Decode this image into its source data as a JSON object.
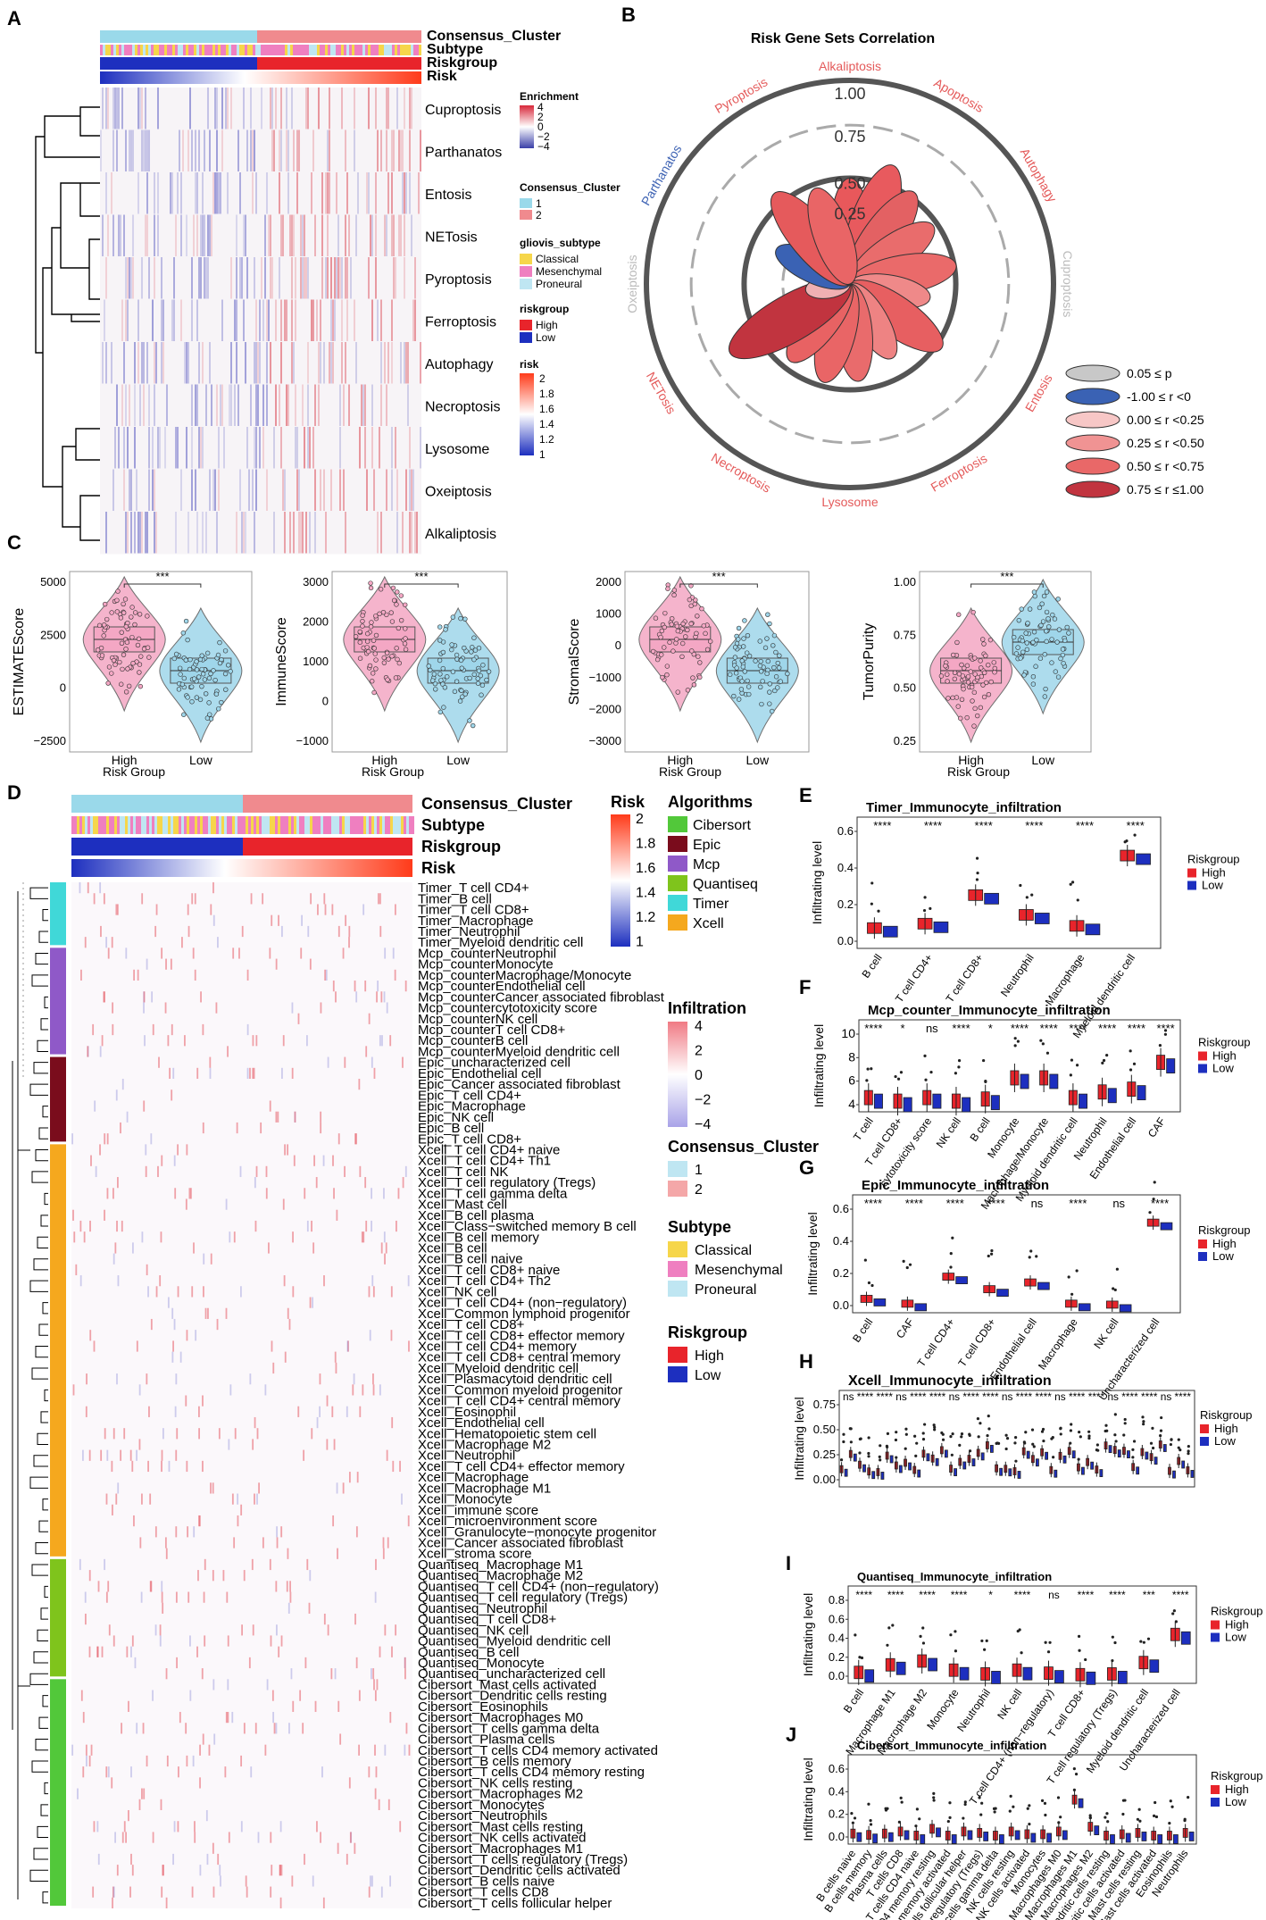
{
  "panels": {
    "A": "A",
    "B": "B",
    "C": "C",
    "D": "D",
    "E": "E",
    "F": "F",
    "G": "G",
    "H": "H",
    "I": "I",
    "J": "J"
  },
  "heatA": {
    "ann": [
      "Consensus_Cluster",
      "Subtype",
      "Riskgroup",
      "Risk"
    ],
    "rows": [
      "Cuproptosis",
      "Parthanatos",
      "Entosis",
      "NETosis",
      "Pyroptosis",
      "Ferroptosis",
      "Autophagy",
      "Necroptosis",
      "Lysosome",
      "Oxeiptosis",
      "Alkaliptosis"
    ],
    "legend": {
      "enrichment_title": "Enrichment",
      "enrichment_ticks": [
        "4",
        "2",
        "0",
        "−2",
        "−4"
      ],
      "cc_title": "Consensus_Cluster",
      "cc_items": [
        "1",
        "2"
      ],
      "sub_title": "gliovis_subtype",
      "sub_items": [
        "Classical",
        "Mesenchymal",
        "Proneural"
      ],
      "rg_title": "riskgroup",
      "rg_items": [
        "High",
        "Low"
      ],
      "risk_title": "risk",
      "risk_ticks": [
        "2",
        "1.8",
        "1.6",
        "1.4",
        "1.2",
        "1"
      ]
    }
  },
  "radar": {
    "title": "Risk Gene Sets Correlation",
    "labels": [
      "Alkaliptosis",
      "Apoptosis",
      "Autophagy",
      "Cuproptosis",
      "Entosis",
      "Ferroptosis",
      "Lysosome",
      "Necroptosis",
      "NETosis",
      "Oxeiptosis",
      "Parthanatos",
      "Pyroptosis"
    ],
    "ring_labels": [
      "1.00",
      "0.75",
      "0.50",
      "0.25"
    ],
    "legend": [
      "0.05 ≤ p",
      "-1.00 ≤ r <0",
      "0.00 ≤ r <0.25",
      "0.25 ≤ r <0.50",
      "0.50 ≤ r <0.75",
      "0.75 ≤ r ≤1.00"
    ]
  },
  "violins": [
    {
      "ylabel": "ESTIMATEScore",
      "ticks": [
        "5000",
        "2500",
        "0",
        "−2500"
      ],
      "sig": "***"
    },
    {
      "ylabel": "ImmuneScore",
      "ticks": [
        "3000",
        "2000",
        "1000",
        "0",
        "−1000"
      ],
      "sig": "***"
    },
    {
      "ylabel": "StromalScore",
      "ticks": [
        "2000",
        "1000",
        "0",
        "−1000",
        "−2000",
        "−3000"
      ],
      "sig": "***"
    },
    {
      "ylabel": "TumorPurity",
      "ticks": [
        "1.00",
        "0.75",
        "0.50",
        "0.25"
      ],
      "sig": "***"
    }
  ],
  "riskGroup": {
    "xlabel": "Risk Group",
    "high": "High",
    "low": "Low"
  },
  "heatD": {
    "ann": [
      "Consensus_Cluster",
      "Subtype",
      "Riskgroup",
      "Risk"
    ],
    "rows": [
      "Timer_T cell CD4+",
      "Timer_B cell",
      "Timer_T cell CD8+",
      "Timer_Macrophage",
      "Timer_Neutrophil",
      "Timer_Myeloid dendritic cell",
      "Mcp_counterNeutrophil",
      "Mcp_counterMonocyte",
      "Mcp_counterMacrophage/Monocyte",
      "Mcp_counterEndothelial cell",
      "Mcp_counterCancer associated fibroblast",
      "Mcp_countercytotoxicity score",
      "Mcp_counterNK cell",
      "Mcp_counterT cell CD8+",
      "Mcp_counterB cell",
      "Mcp_counterMyeloid dendritic cell",
      "Epic_uncharacterized cell",
      "Epic_Endothelial cell",
      "Epic_Cancer associated fibroblast",
      "Epic_T cell CD4+",
      "Epic_Macrophage",
      "Epic_NK cell",
      "Epic_B cell",
      "Epic_T cell CD8+",
      "Xcell_T cell CD4+ naive",
      "Xcell_T cell CD4+ Th1",
      "Xcell_T cell NK",
      "Xcell_T cell regulatory (Tregs)",
      "Xcell_T cell gamma delta",
      "Xcell_Mast cell",
      "Xcell_B cell plasma",
      "Xcell_Class−switched memory B cell",
      "Xcell_B cell memory",
      "Xcell_B cell",
      "Xcell_B cell naive",
      "Xcell_T cell CD8+ naive",
      "Xcell_T cell CD4+ Th2",
      "Xcell_NK cell",
      "Xcell_T cell CD4+ (non−regulatory)",
      "Xcell_Common lymphoid progenitor",
      "Xcell_T cell CD8+",
      "Xcell_T cell CD8+ effector memory",
      "Xcell_T cell CD4+ memory",
      "Xcell_T cell CD8+ central memory",
      "Xcell_Myeloid dendritic cell",
      "Xcell_Plasmacytoid dendritic cell",
      "Xcell_Common myeloid progenitor",
      "Xcell_T cell CD4+ central memory",
      "Xcell_Eosinophil",
      "Xcell_Endothelial cell",
      "Xcell_Hematopoietic stem cell",
      "Xcell_Macrophage M2",
      "Xcell_Neutrophil",
      "Xcell_T cell CD4+ effector memory",
      "Xcell_Macrophage",
      "Xcell_Macrophage M1",
      "Xcell_Monocyte",
      "Xcell_immune score",
      "Xcell_microenvironment score",
      "Xcell_Granulocyte−monocyte progenitor",
      "Xcell_Cancer associated fibroblast",
      "Xcell_stroma score",
      "Quantiseq_Macrophage M1",
      "Quantiseq_Macrophage M2",
      "Quantiseq_T cell CD4+ (non−regulatory)",
      "Quantiseq_T cell regulatory (Tregs)",
      "Quantiseq_Neutrophil",
      "Quantiseq_T cell CD8+",
      "Quantiseq_NK cell",
      "Quantiseq_Myeloid dendritic cell",
      "Quantiseq_B cell",
      "Quantiseq_Monocyte",
      "Quantiseq_uncharacterized cell",
      "Cibersort_Mast cells activated",
      "Cibersort_Dendritic cells resting",
      "Cibersort_Eosinophils",
      "Cibersort_Macrophages M0",
      "Cibersort_T cells gamma delta",
      "Cibersort_Plasma cells",
      "Cibersort_T cells CD4 memory activated",
      "Cibersort_B cells memory",
      "Cibersort_T cells CD4 memory resting",
      "Cibersort_NK cells resting",
      "Cibersort_Macrophages M2",
      "Cibersort_Monocytes",
      "Cibersort_Neutrophils",
      "Cibersort_Mast cells resting",
      "Cibersort_NK cells activated",
      "Cibersort_Macrophages M1",
      "Cibersort_T cells regulatory (Tregs)",
      "Cibersort_Dendritic cells activated",
      "Cibersort_B cells naive",
      "Cibersort_T cells CD8",
      "Cibersort_T cells follicular helper"
    ],
    "legend": {
      "risk_title": "Risk",
      "risk_ticks": [
        "2",
        "1.8",
        "1.6",
        "1.4",
        "1.2",
        "1"
      ],
      "alg_title": "Algorithms",
      "alg_items": [
        "Cibersort",
        "Epic",
        "Mcp",
        "Quantiseq",
        "Timer",
        "Xcell"
      ],
      "inf_title": "Infiltration",
      "inf_ticks": [
        "4",
        "2",
        "0",
        "−2",
        "−4"
      ],
      "cc_title": "Consensus_Cluster",
      "cc_items": [
        "1",
        "2"
      ],
      "sub_title": "Subtype",
      "sub_items": [
        "Classical",
        "Mesenchymal",
        "Proneural"
      ],
      "rg_title": "Riskgroup",
      "rg_items": [
        "High",
        "Low"
      ]
    }
  },
  "boxplots": {
    "ylabel": "Infiltrating level",
    "legend_title": "Riskgroup",
    "high": "High",
    "low": "Low",
    "E": {
      "title": "Timer_Immunocyte_infiltration",
      "ticks": [
        "0.0",
        "0.2",
        "0.4",
        "0.6"
      ],
      "cats": [
        "B cell",
        "T cell CD4+",
        "T cell CD8+",
        "Neutrophil",
        "Macrophage",
        "Myeloid dendritic cell"
      ],
      "sig": [
        "****",
        "****",
        "****",
        "****",
        "****",
        "****"
      ]
    },
    "F": {
      "title": "Mcp_counter_Immunocyte_infiltration",
      "ticks": [
        "4",
        "6",
        "8",
        "10"
      ],
      "cats": [
        "T cell",
        "T cell CD8+",
        "cytotoxicity score",
        "NK cell",
        "B cell",
        "Monocyte",
        "Macrophage/Monocyte",
        "Myeloid dendritic cell",
        "Neutrophil",
        "Endothelial cell",
        "CAF"
      ],
      "sig": [
        "****",
        "*",
        "ns",
        "****",
        "*",
        "****",
        "****",
        "****",
        "****",
        "****",
        "****"
      ]
    },
    "G": {
      "title": "Epic_Immunocyte_infiltration",
      "ticks": [
        "0.0",
        "0.2",
        "0.4",
        "0.6"
      ],
      "cats": [
        "B cell",
        "CAF",
        "T cell CD4+",
        "T cell CD8+",
        "Endothelial cell",
        "Macrophage",
        "NK cell",
        "Uncharacterized cell"
      ],
      "sig": [
        "****",
        "****",
        "****",
        "****",
        "ns",
        "****",
        "ns",
        "****"
      ]
    },
    "H": {
      "title": "Xcell_Immunocyte_infiltration",
      "ticks": [
        "0.00",
        "0.25",
        "0.50",
        "0.75"
      ]
    },
    "I": {
      "title": "Quantiseq_Immunocyte_infiltration",
      "ticks": [
        "0.0",
        "0.2",
        "0.4",
        "0.6",
        "0.8"
      ],
      "cats": [
        "B cell",
        "Macrophage M1",
        "Macrophage M2",
        "Monocyte",
        "Neutrophil",
        "NK cell",
        "T cell CD4+ (non−regulatory)",
        "T cell CD8+",
        "T cell regulatory (Tregs)",
        "Myeloid dendritic cell",
        "Uncharacterized cell"
      ],
      "sig": [
        "****",
        "****",
        "****",
        "****",
        "*",
        "****",
        "ns",
        "****",
        "****",
        "***",
        "****"
      ]
    },
    "J": {
      "title": "Cibersort_Immunocyte_infiltration",
      "ticks": [
        "0.0",
        "0.2",
        "0.4",
        "0.6"
      ],
      "cats": [
        "B cells naive",
        "B cells memory",
        "Plasma cells",
        "T cells CD8",
        "T cells CD4 naive",
        "T cells CD4 memory resting",
        "T cells CD4 memory activated",
        "T cells follicular helper",
        "T cells regulatory (Tregs)",
        "T cells gamma delta",
        "NK cells resting",
        "NK cells activated",
        "Monocytes",
        "Macrophages M0",
        "Macrophages M1",
        "Macrophages M2",
        "Dendritic cells resting",
        "Dendritic cells activated",
        "Mast cells resting",
        "Mast cells activated",
        "Eosinophils",
        "Neutrophils"
      ]
    }
  },
  "colors": {
    "high": "#e8242b",
    "low": "#1d2fbf",
    "pink": "#e88aa6",
    "cyan": "#7fd3e6",
    "classical": "#f6d64a",
    "mesenchymal": "#ef7fc0",
    "proneural": "#bfe6f2"
  }
}
